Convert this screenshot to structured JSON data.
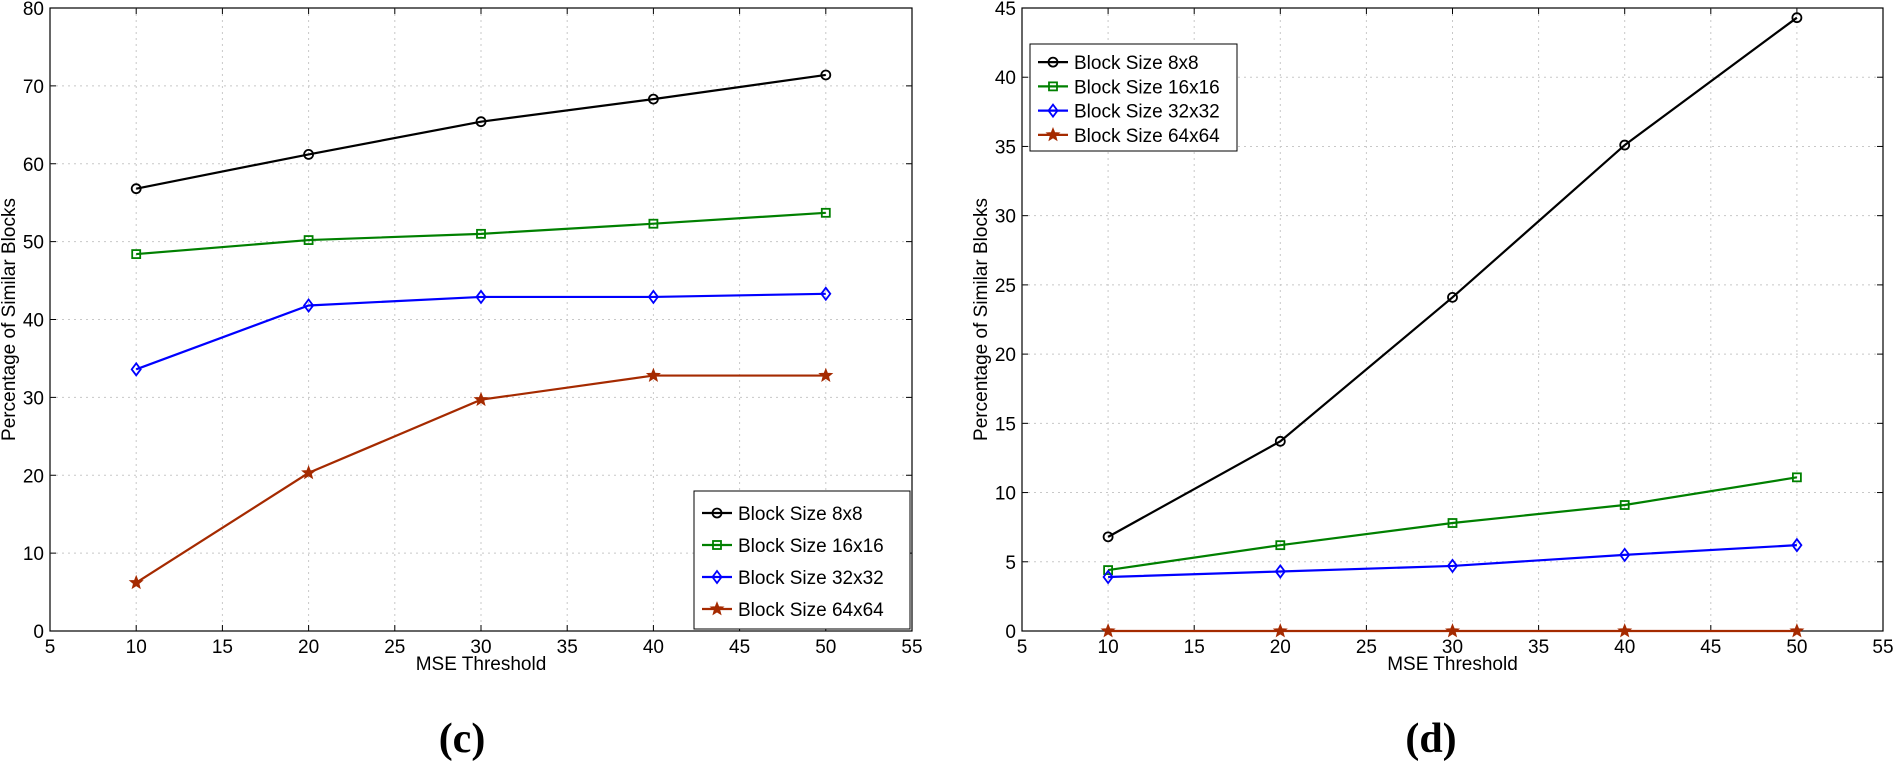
{
  "chart_data": [
    {
      "type": "line",
      "caption": "(c)",
      "xlabel": "MSE Threshold",
      "ylabel": "Percentage of Similar Blocks",
      "xlim": [
        5,
        55
      ],
      "ylim": [
        0,
        80
      ],
      "xticks": [
        5,
        10,
        15,
        20,
        25,
        30,
        35,
        40,
        45,
        50,
        55
      ],
      "yticks": [
        0,
        10,
        20,
        30,
        40,
        50,
        60,
        70,
        80
      ],
      "grid": true,
      "legend_position": "bottom-right",
      "x": [
        10,
        20,
        30,
        40,
        50
      ],
      "series": [
        {
          "name": "Block Size 8x8",
          "color": "#000000",
          "marker": "circle",
          "values": [
            56.8,
            61.2,
            65.4,
            68.3,
            71.4
          ]
        },
        {
          "name": "Block Size 16x16",
          "color": "#008000",
          "marker": "square",
          "values": [
            48.4,
            50.2,
            51.0,
            52.3,
            53.7
          ]
        },
        {
          "name": "Block Size 32x32",
          "color": "#0000ff",
          "marker": "diamond",
          "values": [
            33.6,
            41.8,
            42.9,
            42.9,
            43.3
          ]
        },
        {
          "name": "Block Size 64x64",
          "color": "#a52a00",
          "marker": "star",
          "values": [
            6.2,
            20.3,
            29.7,
            32.8,
            32.8
          ]
        }
      ]
    },
    {
      "type": "line",
      "caption": "(d)",
      "xlabel": "MSE Threshold",
      "ylabel": "Percentage of Similar Blocks",
      "xlim": [
        5,
        55
      ],
      "ylim": [
        0,
        45
      ],
      "xticks": [
        5,
        10,
        15,
        20,
        25,
        30,
        35,
        40,
        45,
        50,
        55
      ],
      "yticks": [
        0,
        5,
        10,
        15,
        20,
        25,
        30,
        35,
        40,
        45
      ],
      "grid": true,
      "legend_position": "top-left",
      "x": [
        10,
        20,
        30,
        40,
        50
      ],
      "series": [
        {
          "name": "Block Size 8x8",
          "color": "#000000",
          "marker": "circle",
          "values": [
            6.8,
            13.7,
            24.1,
            35.1,
            44.3
          ]
        },
        {
          "name": "Block Size 16x16",
          "color": "#008000",
          "marker": "square",
          "values": [
            4.4,
            6.2,
            7.8,
            9.1,
            11.1
          ]
        },
        {
          "name": "Block Size 32x32",
          "color": "#0000ff",
          "marker": "diamond",
          "values": [
            3.9,
            4.3,
            4.7,
            5.5,
            6.2
          ]
        },
        {
          "name": "Block Size 64x64",
          "color": "#a52a00",
          "marker": "star",
          "values": [
            0,
            0,
            0,
            0,
            0
          ]
        }
      ]
    }
  ]
}
